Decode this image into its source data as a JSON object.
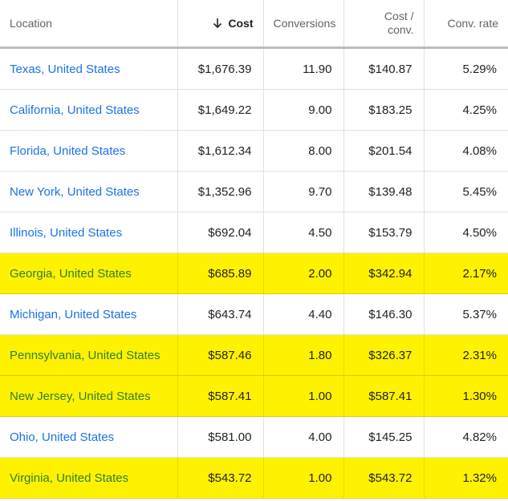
{
  "headers": {
    "location": "Location",
    "cost": "Cost",
    "conversions": "Conversions",
    "cost_per_conv_line1": "Cost /",
    "cost_per_conv_line2": "conv.",
    "conv_rate": "Conv. rate"
  },
  "sort": {
    "column": "cost",
    "direction": "descending",
    "icon": "arrow-down-icon"
  },
  "colors": {
    "highlight": "#fff200",
    "link": "#1a73e8",
    "highlight_link": "#2e7d32"
  },
  "rows": [
    {
      "location": "Texas, United States",
      "cost": "$1,676.39",
      "conversions": "11.90",
      "cost_per_conv": "$140.87",
      "conv_rate": "5.29%",
      "highlighted": false
    },
    {
      "location": "California, United States",
      "cost": "$1,649.22",
      "conversions": "9.00",
      "cost_per_conv": "$183.25",
      "conv_rate": "4.25%",
      "highlighted": false
    },
    {
      "location": "Florida, United States",
      "cost": "$1,612.34",
      "conversions": "8.00",
      "cost_per_conv": "$201.54",
      "conv_rate": "4.08%",
      "highlighted": false
    },
    {
      "location": "New York, United States",
      "cost": "$1,352.96",
      "conversions": "9.70",
      "cost_per_conv": "$139.48",
      "conv_rate": "5.45%",
      "highlighted": false
    },
    {
      "location": "Illinois, United States",
      "cost": "$692.04",
      "conversions": "4.50",
      "cost_per_conv": "$153.79",
      "conv_rate": "4.50%",
      "highlighted": false
    },
    {
      "location": "Georgia, United States",
      "cost": "$685.89",
      "conversions": "2.00",
      "cost_per_conv": "$342.94",
      "conv_rate": "2.17%",
      "highlighted": true
    },
    {
      "location": "Michigan, United States",
      "cost": "$643.74",
      "conversions": "4.40",
      "cost_per_conv": "$146.30",
      "conv_rate": "5.37%",
      "highlighted": false
    },
    {
      "location": "Pennsylvania, United States",
      "cost": "$587.46",
      "conversions": "1.80",
      "cost_per_conv": "$326.37",
      "conv_rate": "2.31%",
      "highlighted": true
    },
    {
      "location": "New Jersey, United States",
      "cost": "$587.41",
      "conversions": "1.00",
      "cost_per_conv": "$587.41",
      "conv_rate": "1.30%",
      "highlighted": true
    },
    {
      "location": "Ohio, United States",
      "cost": "$581.00",
      "conversions": "4.00",
      "cost_per_conv": "$145.25",
      "conv_rate": "4.82%",
      "highlighted": false
    },
    {
      "location": "Virginia, United States",
      "cost": "$543.72",
      "conversions": "1.00",
      "cost_per_conv": "$543.72",
      "conv_rate": "1.32%",
      "highlighted": true
    }
  ]
}
